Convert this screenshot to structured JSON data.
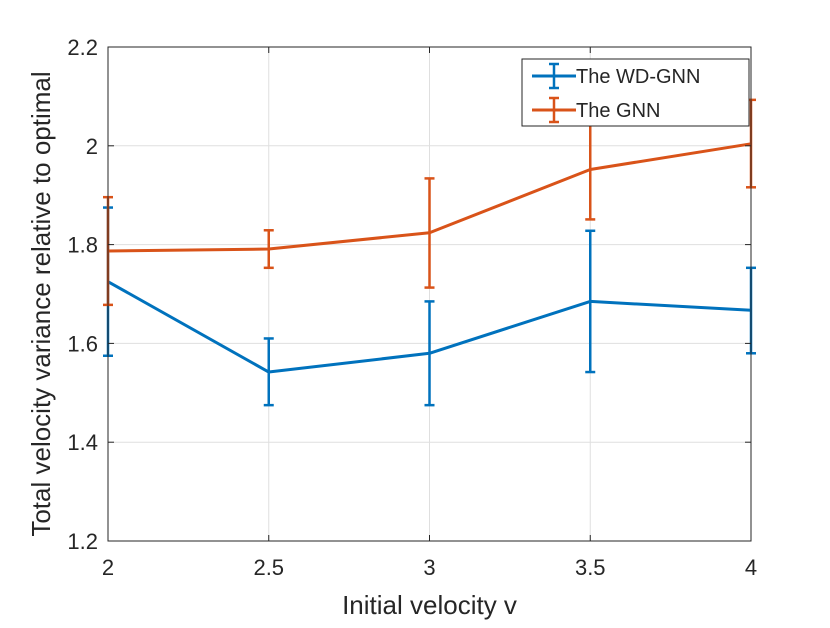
{
  "chart_data": {
    "type": "line",
    "title": "",
    "xlabel": "Initial velocity v",
    "ylabel": "Total velocity variance relative to optimal",
    "xlim": [
      2,
      4
    ],
    "ylim": [
      1.2,
      2.2
    ],
    "xticks": [
      2,
      2.5,
      3,
      3.5,
      4
    ],
    "xtick_labels": [
      "2",
      "2.5",
      "3",
      "3.5",
      "4"
    ],
    "yticks": [
      1.2,
      1.4,
      1.6,
      1.8,
      2.0,
      2.2
    ],
    "ytick_labels": [
      "1.2",
      "1.4",
      "1.6",
      "1.8",
      "2",
      "2.2"
    ],
    "grid": true,
    "legend_position": "top-right",
    "x": [
      2,
      2.5,
      3,
      3.5,
      4
    ],
    "series": [
      {
        "name": "The WD-GNN",
        "color": "#0072BD",
        "values": [
          1.725,
          1.542,
          1.58,
          1.685,
          1.667
        ],
        "err_low": [
          1.575,
          1.475,
          1.475,
          1.542,
          1.58
        ],
        "err_high": [
          1.875,
          1.61,
          1.685,
          1.828,
          1.753
        ]
      },
      {
        "name": "The GNN",
        "color": "#D95319",
        "values": [
          1.787,
          1.791,
          1.824,
          1.952,
          2.004
        ],
        "err_low": [
          1.678,
          1.753,
          1.713,
          1.851,
          1.916
        ],
        "err_high": [
          1.896,
          1.829,
          1.934,
          2.052,
          2.093
        ]
      }
    ]
  }
}
